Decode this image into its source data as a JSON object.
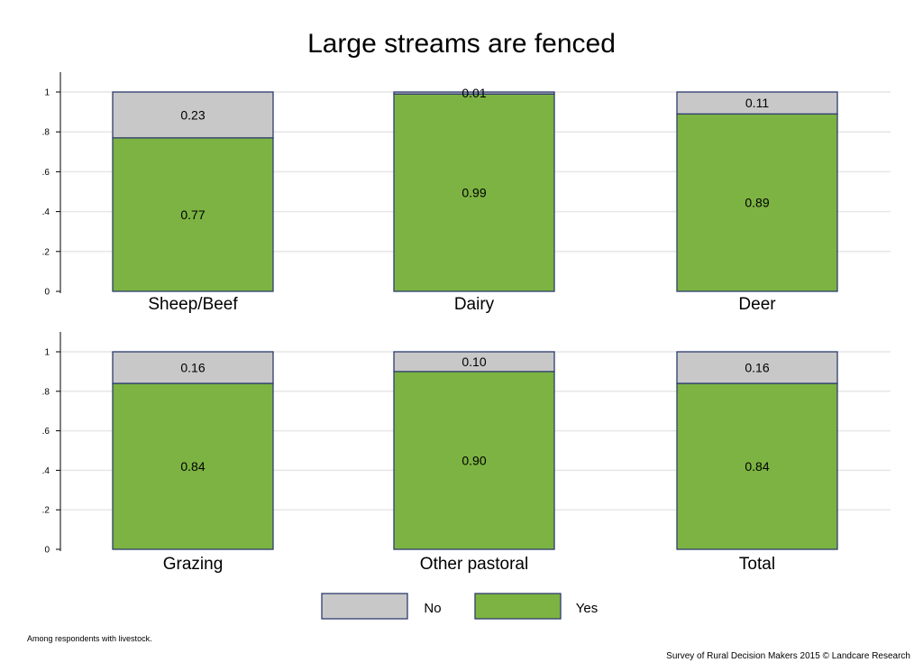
{
  "chart_data": {
    "type": "bar",
    "stacked": true,
    "title": "Large streams are fenced",
    "ylim": [
      0,
      1
    ],
    "yticks": [
      0,
      0.2,
      0.4,
      0.6,
      0.8,
      1
    ],
    "ytick_labels": [
      "0",
      ".2",
      ".4",
      ".6",
      ".8",
      "1"
    ],
    "grid": true,
    "legend_position": "bottom",
    "categories": [
      "Sheep/Beef",
      "Dairy",
      "Deer",
      "Grazing",
      "Other pastoral",
      "Total"
    ],
    "series": [
      {
        "name": "Yes",
        "color": "#7cb342",
        "values": [
          0.77,
          0.99,
          0.89,
          0.84,
          0.9,
          0.84
        ],
        "labels": [
          "0.77",
          "0.99",
          "0.89",
          "0.84",
          "0.90",
          "0.84"
        ]
      },
      {
        "name": "No",
        "color": "#c8c8c8",
        "values": [
          0.23,
          0.01,
          0.11,
          0.16,
          0.1,
          0.16
        ],
        "labels": [
          "0.23",
          "0.01",
          "0.11",
          "0.16",
          "0.10",
          "0.16"
        ]
      }
    ],
    "legend": [
      {
        "name": "No",
        "color": "#c8c8c8"
      },
      {
        "name": "Yes",
        "color": "#7cb342"
      }
    ],
    "bar_outline_color": "#2e3c6e",
    "gridline_color": "#e6e6e6"
  },
  "footer": {
    "note": "Among respondents with livestock.",
    "credit": "Survey of Rural Decision Makers 2015 © Landcare Research"
  }
}
